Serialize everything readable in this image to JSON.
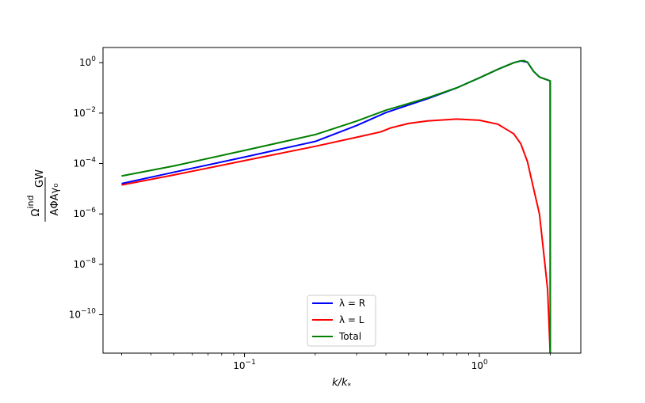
{
  "chart_data": {
    "type": "line",
    "xscale": "log",
    "yscale": "log",
    "xlim": [
      0.025,
      2.7
    ],
    "ylim": [
      3e-12,
      4
    ],
    "x_ticks": [
      0.1,
      1
    ],
    "x_tick_labels": [
      {
        "base": "10",
        "exp": "−1"
      },
      {
        "base": "10",
        "exp": "0"
      }
    ],
    "y_ticks": [
      1e-10,
      1e-08,
      1e-06,
      0.0001,
      0.01,
      1
    ],
    "y_tick_labels": [
      {
        "base": "10",
        "exp": "−10"
      },
      {
        "base": "10",
        "exp": "−8"
      },
      {
        "base": "10",
        "exp": "−6"
      },
      {
        "base": "10",
        "exp": "−4"
      },
      {
        "base": "10",
        "exp": "−2"
      },
      {
        "base": "10",
        "exp": "0"
      }
    ],
    "xlabel": {
      "main": "k/k",
      "sub": "*"
    },
    "ylabel": {
      "numerator": "Ω",
      "num_sup": "ind",
      "num_sub": "GW",
      "denominator": "AΦAγ₀"
    },
    "legend": {
      "position": "lower-center",
      "entries": [
        "λ = R",
        "λ = L",
        "Total"
      ]
    },
    "grid": false,
    "series": [
      {
        "name": "λ = R",
        "color": "#0000ff",
        "x": [
          0.03,
          0.05,
          0.1,
          0.2,
          0.3,
          0.4,
          0.5,
          0.6,
          0.8,
          1.0,
          1.2,
          1.4,
          1.5,
          1.6,
          1.7,
          1.8,
          2.0,
          2.0,
          2.001
        ],
        "y": [
          1.6e-05,
          4.5e-05,
          0.00018,
          0.00075,
          0.0032,
          0.0105,
          0.021,
          0.037,
          0.1,
          0.25,
          0.55,
          1.0,
          1.18,
          1.05,
          0.45,
          0.27,
          0.19,
          0.19,
          3e-12
        ]
      },
      {
        "name": "λ = L",
        "color": "#ff0000",
        "x": [
          0.03,
          0.05,
          0.1,
          0.2,
          0.3,
          0.38,
          0.42,
          0.5,
          0.6,
          0.8,
          1.0,
          1.2,
          1.4,
          1.5,
          1.6,
          1.7,
          1.8,
          1.9,
          1.95,
          2.0
        ],
        "y": [
          1.4e-05,
          3.5e-05,
          0.00013,
          0.00048,
          0.0011,
          0.0018,
          0.0026,
          0.0039,
          0.0049,
          0.0058,
          0.0052,
          0.0036,
          0.0015,
          0.0006,
          0.00012,
          1e-05,
          1e-06,
          1e-08,
          1e-09,
          3e-12
        ]
      },
      {
        "name": "Total",
        "color": "#008000",
        "x": [
          0.03,
          0.05,
          0.1,
          0.2,
          0.3,
          0.4,
          0.5,
          0.6,
          0.8,
          1.0,
          1.2,
          1.4,
          1.5,
          1.55,
          1.6,
          1.7,
          1.8,
          2.0,
          2.0,
          2.001
        ],
        "y": [
          3.2e-05,
          8e-05,
          0.00033,
          0.0014,
          0.0048,
          0.013,
          0.024,
          0.04,
          0.1,
          0.25,
          0.55,
          1.0,
          1.18,
          1.2,
          1.05,
          0.45,
          0.27,
          0.19,
          0.19,
          3e-12
        ]
      }
    ]
  }
}
